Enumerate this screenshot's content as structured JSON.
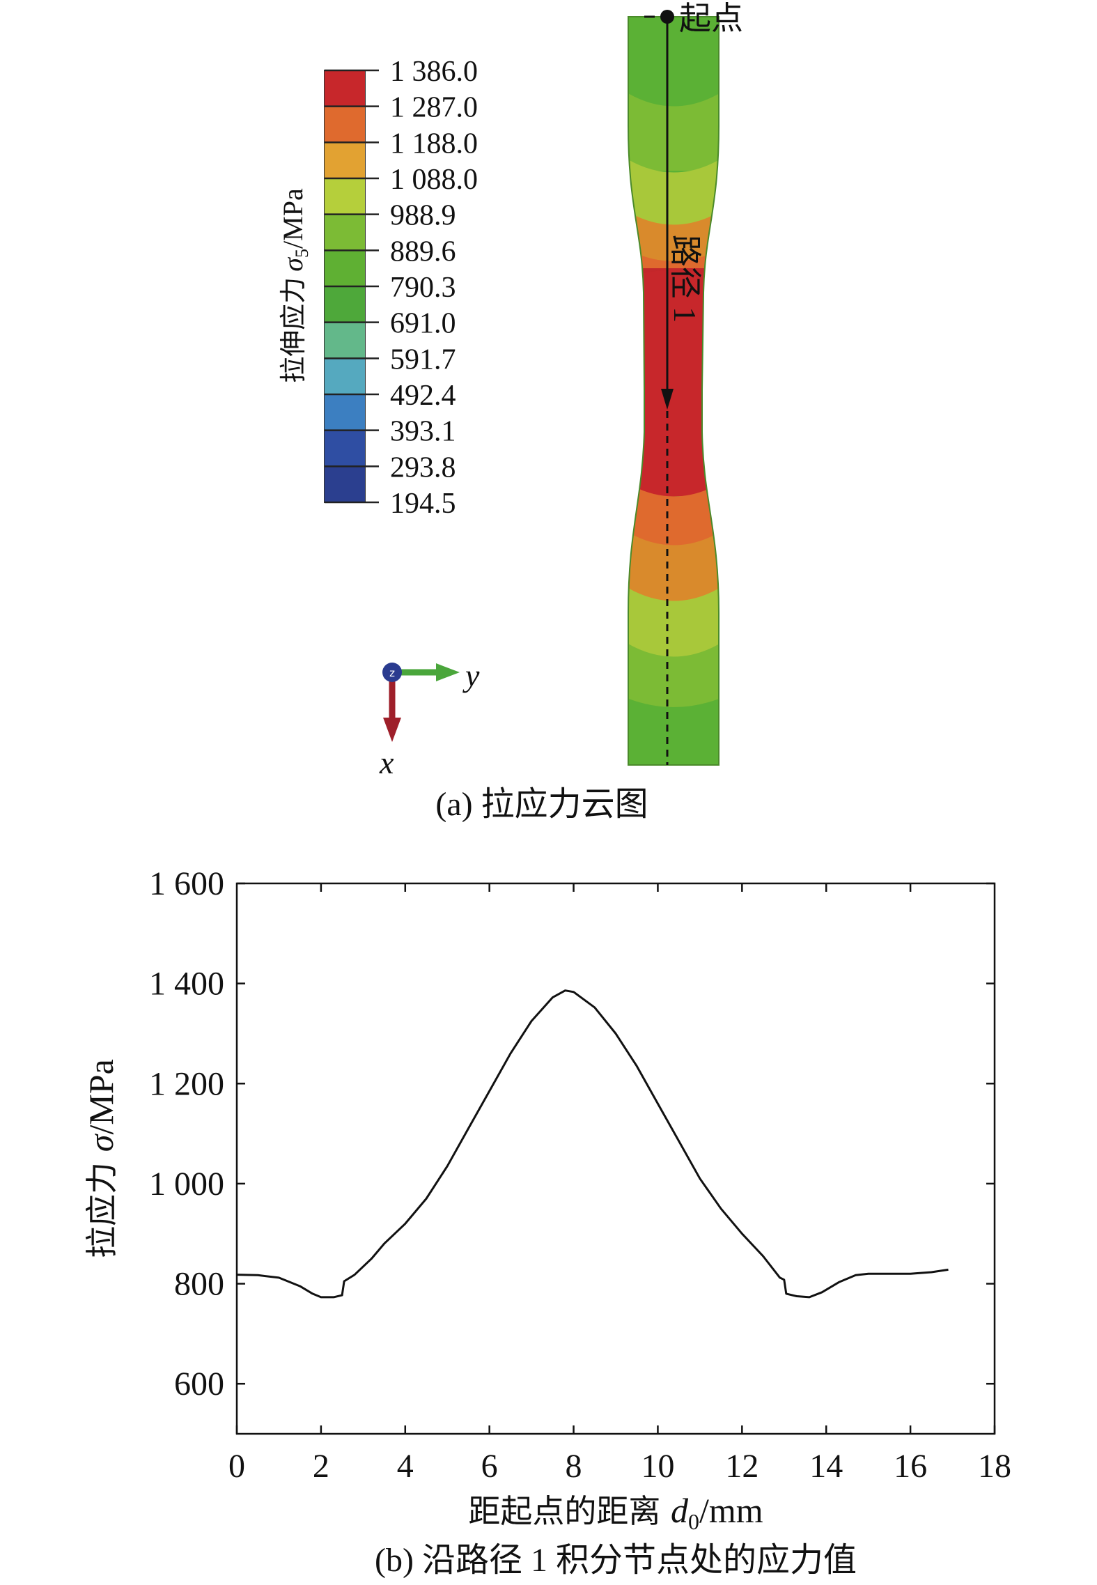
{
  "colors": {
    "scale": [
      "#2b3f8f",
      "#2f4ea3",
      "#3c7fc1",
      "#55a9bf",
      "#63b88a",
      "#4ea83a",
      "#5fb033",
      "#7cbb35",
      "#b5cf3b",
      "#e2a232",
      "#df6a2e",
      "#c7272b"
    ],
    "specimen_green": "#5bb135",
    "specimen_lime": "#a8c83a",
    "specimen_orange": "#d98a2c",
    "specimen_red": "#c3272b",
    "axis_y": "#4aa63b",
    "axis_x": "#9e1f2a",
    "axis_z": "#2a3b8f"
  },
  "panel_a": {
    "legend_title_main": "拉伸应力",
    "legend_title_symbol": "σ",
    "legend_title_sub": "5",
    "legend_title_unit": "/MPa",
    "legend_values": [
      "1 386.0",
      "1 287.0",
      "1 188.0",
      "1 088.0",
      "988.9",
      "889.6",
      "790.3",
      "691.0",
      "591.7",
      "492.4",
      "393.1",
      "293.8",
      "194.5"
    ],
    "start_label": "起点",
    "path_label": "路径 1",
    "triad_y": "y",
    "triad_x": "x",
    "triad_z": "z",
    "caption": "(a) 拉应力云图"
  },
  "chart_data": {
    "type": "line",
    "title": "",
    "xlabel_main": "距起点的距离 ",
    "xlabel_symbol": "d",
    "xlabel_sub": "0",
    "xlabel_unit": "/mm",
    "ylabel_main": "拉应力 ",
    "ylabel_symbol": "σ",
    "ylabel_unit": "/MPa",
    "xlim": [
      0,
      18
    ],
    "ylim": [
      500,
      1600
    ],
    "x_ticks": [
      0,
      2,
      4,
      6,
      8,
      10,
      12,
      14,
      16,
      18
    ],
    "y_ticks": [
      600,
      800,
      1000,
      1200,
      1400,
      1600
    ],
    "y_tick_labels": [
      "600",
      "800",
      "1 000",
      "1 200",
      "1 400",
      "1 600"
    ],
    "grid": false,
    "series": [
      {
        "x": [
          0,
          0.5,
          1.0,
          1.5,
          1.8,
          2.0,
          2.3,
          2.5,
          2.55,
          2.8,
          3.2,
          3.5,
          4.0,
          4.5,
          5.0,
          5.5,
          6.0,
          6.5,
          7.0,
          7.5,
          7.8,
          8.0,
          8.5,
          9.0,
          9.5,
          10.0,
          10.5,
          11.0,
          11.5,
          12.0,
          12.5,
          12.9,
          13.0,
          13.05,
          13.3,
          13.6,
          13.9,
          14.3,
          14.7,
          15.0,
          15.5,
          16.0,
          16.5,
          16.9
        ],
        "y": [
          818,
          817,
          812,
          795,
          780,
          773,
          773,
          777,
          805,
          818,
          850,
          880,
          920,
          970,
          1035,
          1110,
          1185,
          1260,
          1325,
          1372,
          1386,
          1383,
          1352,
          1300,
          1235,
          1160,
          1085,
          1010,
          950,
          900,
          855,
          812,
          808,
          780,
          775,
          773,
          783,
          803,
          817,
          820,
          820,
          820,
          823,
          828
        ]
      }
    ],
    "caption": "(b) 沿路径 1 积分节点处的应力值"
  }
}
